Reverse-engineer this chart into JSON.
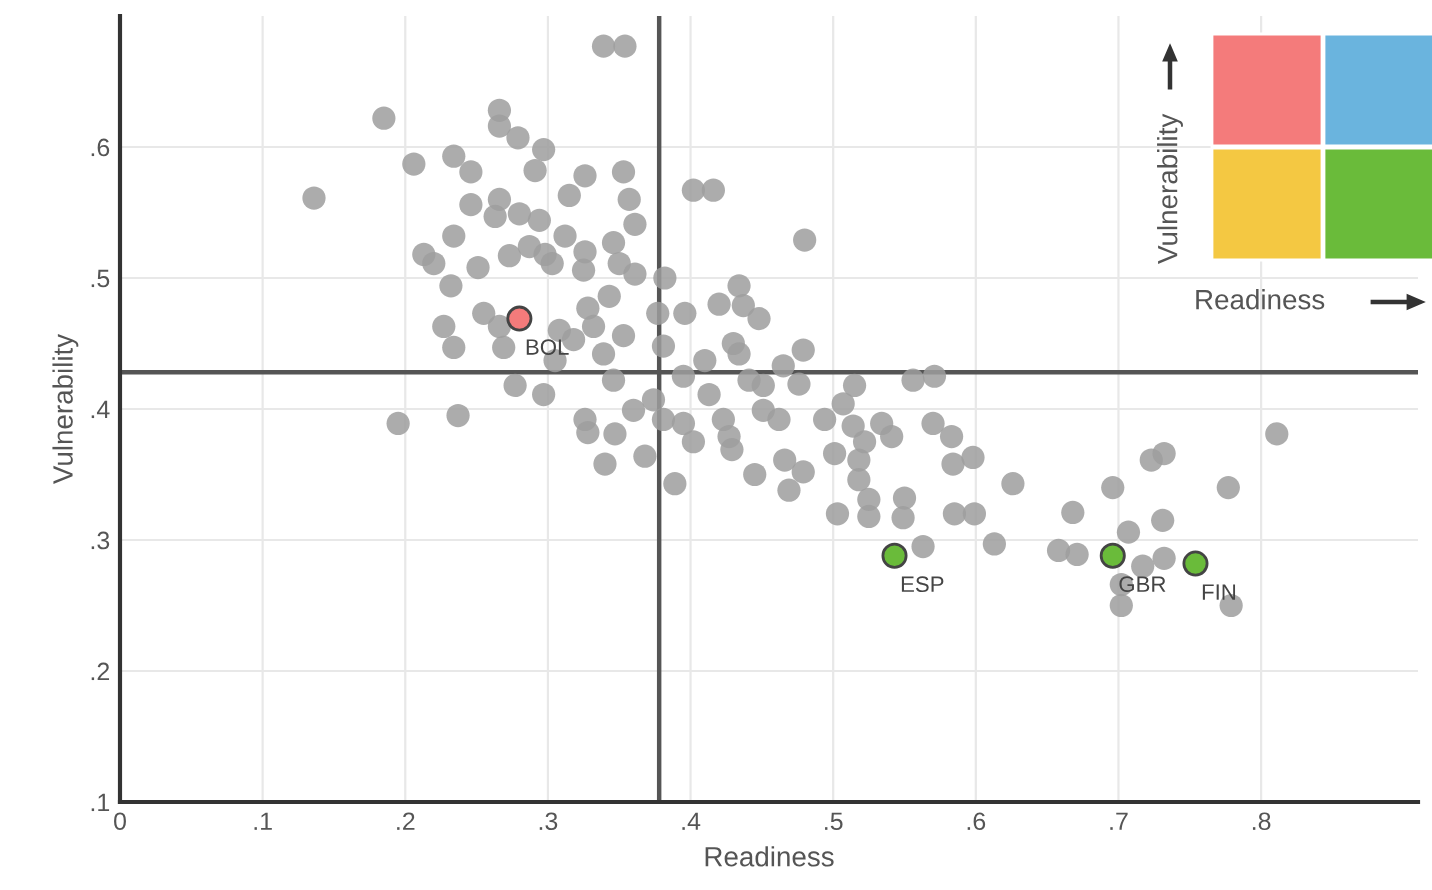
{
  "chart_data": {
    "type": "scatter",
    "xlabel": "Readiness",
    "ylabel": "Vulnerability",
    "xlim": [
      0,
      0.91
    ],
    "ylim": [
      0.1,
      0.7
    ],
    "xticks": [
      0,
      {
        "value": 0.1,
        "label": ".1"
      },
      {
        "value": 0.2,
        "label": ".2"
      },
      {
        "value": 0.3,
        "label": ".3"
      },
      {
        "value": 0.4,
        "label": ".4"
      },
      {
        "value": 0.5,
        "label": ".5"
      },
      {
        "value": 0.6,
        "label": ".6"
      },
      {
        "value": 0.7,
        "label": ".7"
      },
      {
        "value": 0.8,
        "label": ".8"
      }
    ],
    "yticks": [
      {
        "value": 0.1,
        "label": ".1"
      },
      {
        "value": 0.2,
        "label": ".2"
      },
      {
        "value": 0.3,
        "label": ".3"
      },
      {
        "value": 0.4,
        "label": ".4"
      },
      {
        "value": 0.5,
        "label": ".5"
      },
      {
        "value": 0.6,
        "label": ".6"
      }
    ],
    "grid": true,
    "marker": "circle",
    "legend": false,
    "series": [
      {
        "color": "#9e9e9e",
        "x": [
          0.136,
          0.185,
          0.206,
          0.234,
          0.246,
          0.266,
          0.266,
          0.279,
          0.297,
          0.291,
          0.326,
          0.353,
          0.315,
          0.246,
          0.266,
          0.263,
          0.234,
          0.28,
          0.294,
          0.312,
          0.326,
          0.346,
          0.357,
          0.361,
          0.213,
          0.22,
          0.251,
          0.273,
          0.287,
          0.298,
          0.303,
          0.325,
          0.35,
          0.361,
          0.382,
          0.232,
          0.343,
          0.328,
          0.255,
          0.227,
          0.266,
          0.234,
          0.269,
          0.308,
          0.332,
          0.353,
          0.377,
          0.396,
          0.339,
          0.354,
          0.402,
          0.416,
          0.48,
          0.42,
          0.434,
          0.437,
          0.448,
          0.381,
          0.41,
          0.43,
          0.434,
          0.479,
          0.465,
          0.395,
          0.515,
          0.556,
          0.571,
          0.441,
          0.451,
          0.476,
          0.811,
          0.305,
          0.318,
          0.339,
          0.346,
          0.277,
          0.297,
          0.195,
          0.237,
          0.326,
          0.328,
          0.347,
          0.34,
          0.368,
          0.389,
          0.36,
          0.374,
          0.381,
          0.395,
          0.402,
          0.423,
          0.427,
          0.429,
          0.451,
          0.462,
          0.445,
          0.466,
          0.479,
          0.469,
          0.503,
          0.494,
          0.514,
          0.501,
          0.518,
          0.525,
          0.413,
          0.507,
          0.522,
          0.534,
          0.541,
          0.57,
          0.583,
          0.518,
          0.525,
          0.549,
          0.55,
          0.584,
          0.598,
          0.626,
          0.585,
          0.599,
          0.613,
          0.563,
          0.668,
          0.658,
          0.671,
          0.696,
          0.723,
          0.732,
          0.707,
          0.731,
          0.717,
          0.732,
          0.702,
          0.702,
          0.777,
          0.779
        ],
        "values": [
          0.561,
          0.622,
          0.587,
          0.593,
          0.581,
          0.628,
          0.616,
          0.607,
          0.598,
          0.582,
          0.578,
          0.581,
          0.563,
          0.556,
          0.56,
          0.547,
          0.532,
          0.549,
          0.544,
          0.532,
          0.52,
          0.527,
          0.56,
          0.541,
          0.518,
          0.511,
          0.508,
          0.517,
          0.524,
          0.518,
          0.511,
          0.506,
          0.511,
          0.503,
          0.5,
          0.494,
          0.486,
          0.477,
          0.473,
          0.463,
          0.463,
          0.447,
          0.447,
          0.46,
          0.463,
          0.456,
          0.473,
          0.473,
          0.677,
          0.677,
          0.567,
          0.567,
          0.529,
          0.48,
          0.494,
          0.479,
          0.469,
          0.448,
          0.437,
          0.45,
          0.442,
          0.445,
          0.433,
          0.425,
          0.418,
          0.422,
          0.425,
          0.422,
          0.418,
          0.419,
          0.381,
          0.437,
          0.453,
          0.442,
          0.422,
          0.418,
          0.411,
          0.389,
          0.395,
          0.392,
          0.382,
          0.381,
          0.358,
          0.364,
          0.343,
          0.399,
          0.407,
          0.392,
          0.389,
          0.375,
          0.392,
          0.379,
          0.369,
          0.399,
          0.392,
          0.35,
          0.361,
          0.352,
          0.338,
          0.32,
          0.392,
          0.387,
          0.366,
          0.361,
          0.318,
          0.411,
          0.404,
          0.375,
          0.389,
          0.379,
          0.389,
          0.379,
          0.346,
          0.331,
          0.317,
          0.332,
          0.358,
          0.363,
          0.343,
          0.32,
          0.32,
          0.297,
          0.295,
          0.321,
          0.292,
          0.289,
          0.34,
          0.361,
          0.366,
          0.306,
          0.315,
          0.28,
          0.286,
          0.266,
          0.25,
          0.34,
          0.25
        ]
      },
      {
        "x": [
          0.28,
          0.543,
          0.696,
          0.754
        ],
        "values": [
          0.469,
          0.288,
          0.288,
          0.282
        ],
        "colors": [
          "#f47b7b",
          "#6abb3a",
          "#6abb3a",
          "#6abb3a"
        ]
      }
    ],
    "ref_lines": [
      {
        "axis": "x",
        "value": 0.378,
        "color": "#555555"
      },
      {
        "axis": "y",
        "value": 0.428,
        "color": "#555555"
      }
    ],
    "annotations": [
      {
        "text": "BOL",
        "x": 0.28,
        "y": 0.469
      },
      {
        "text": "ESP",
        "x": 0.543,
        "y": 0.288
      },
      {
        "text": "GBR",
        "x": 0.696,
        "y": 0.288
      },
      {
        "text": "FIN",
        "x": 0.754,
        "y": 0.282
      },
      "Vulnerability",
      "Readiness"
    ]
  }
}
